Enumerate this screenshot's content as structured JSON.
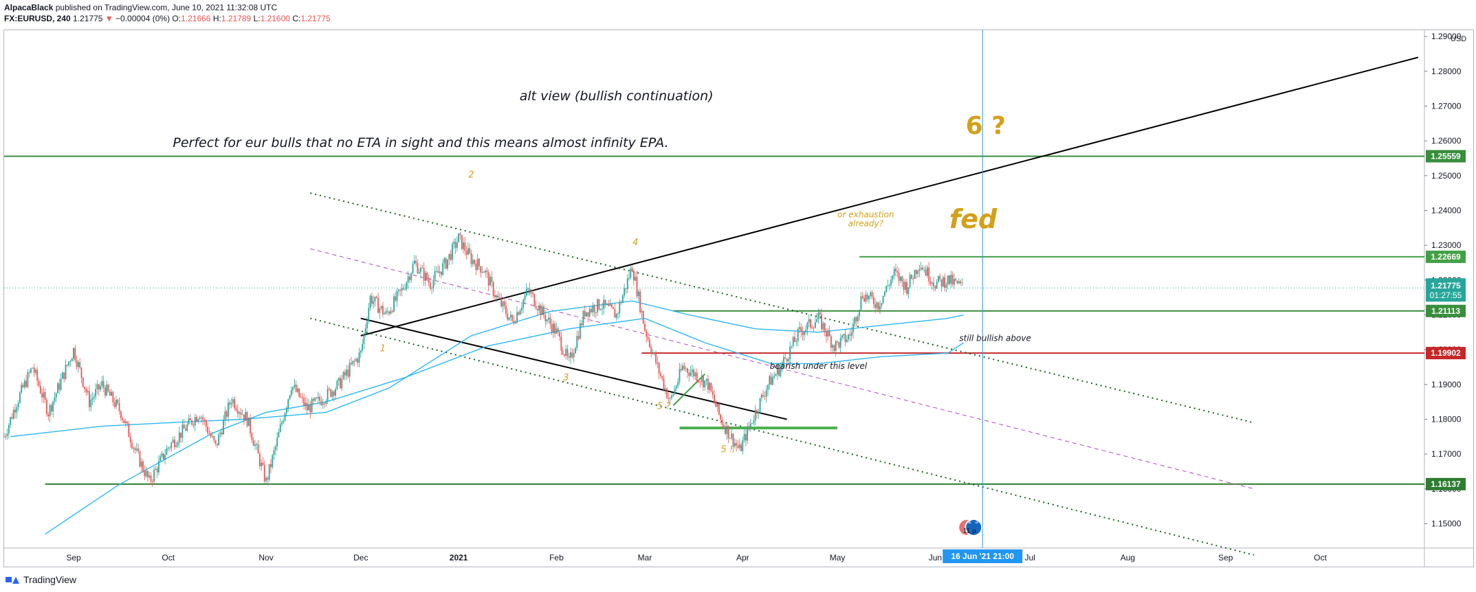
{
  "header": {
    "publisher": "AlpacaBlack",
    "published_text": "published on TradingView.com, June 10, 2021 11:32:08 UTC",
    "symbol": "FX:EURUSD, 240",
    "last": "1.21775",
    "arrow": "▼",
    "change": "−0.00004 (0%)",
    "o_label": "O:",
    "o_value": "1.21666",
    "h_label": "H:",
    "h_value": "1.21789",
    "l_label": "L:",
    "l_value": "1.21600",
    "c_label": "C:",
    "c_value": "1.21775"
  },
  "footer": {
    "brand": "TradingView"
  },
  "colors": {
    "up": "#26a69a",
    "down": "#ef5350",
    "green_line": "#388e3c",
    "red_line": "#c62828",
    "ma": "#29b6f6",
    "annotation": "#d4a017",
    "cursor": "#2196f3"
  },
  "chart_data": {
    "type": "candlestick",
    "symbol": "FX:EURUSD",
    "interval": "240",
    "currency_label": "USD",
    "ylim": [
      1.143,
      1.2918
    ],
    "y_ticks": [
      "1.15000",
      "1.16000",
      "1.17000",
      "1.18000",
      "1.19000",
      "1.20000",
      "1.21000",
      "1.22000",
      "1.23000",
      "1.24000",
      "1.25000",
      "1.26000",
      "1.27000",
      "1.28000",
      "1.29000"
    ],
    "x_ticks": [
      "Sep",
      "Oct",
      "Nov",
      "Dec",
      "2021",
      "Feb",
      "Mar",
      "Apr",
      "May",
      "Jun",
      "Jul",
      "Aug",
      "Sep",
      "Oct"
    ],
    "x_tick_dates": [
      "2020-09-01",
      "2020-10-01",
      "2020-11-01",
      "2020-12-01",
      "2021-01-01",
      "2021-02-01",
      "2021-03-01",
      "2021-04-01",
      "2021-05-01",
      "2021-06-01",
      "2021-07-01",
      "2021-08-01",
      "2021-09-01",
      "2021-10-01"
    ],
    "xlim": [
      "2020-08-10",
      "2021-11-03"
    ],
    "price_path": [
      [
        "2020-08-10",
        1.175
      ],
      [
        "2020-08-14",
        1.185
      ],
      [
        "2020-08-19",
        1.195
      ],
      [
        "2020-08-24",
        1.182
      ],
      [
        "2020-09-01",
        1.2
      ],
      [
        "2020-09-06",
        1.185
      ],
      [
        "2020-09-10",
        1.19
      ],
      [
        "2020-09-16",
        1.182
      ],
      [
        "2020-09-21",
        1.17
      ],
      [
        "2020-09-25",
        1.162
      ],
      [
        "2020-10-01",
        1.172
      ],
      [
        "2020-10-06",
        1.177
      ],
      [
        "2020-10-11",
        1.182
      ],
      [
        "2020-10-16",
        1.172
      ],
      [
        "2020-10-21",
        1.186
      ],
      [
        "2020-10-26",
        1.18
      ],
      [
        "2020-11-01",
        1.162
      ],
      [
        "2020-11-04",
        1.172
      ],
      [
        "2020-11-09",
        1.19
      ],
      [
        "2020-11-14",
        1.183
      ],
      [
        "2020-11-19",
        1.186
      ],
      [
        "2020-11-24",
        1.19
      ],
      [
        "2020-12-01",
        1.199
      ],
      [
        "2020-12-04",
        1.215
      ],
      [
        "2020-12-09",
        1.21
      ],
      [
        "2020-12-14",
        1.217
      ],
      [
        "2020-12-18",
        1.225
      ],
      [
        "2020-12-23",
        1.219
      ],
      [
        "2020-12-28",
        1.225
      ],
      [
        "2021-01-01",
        1.232
      ],
      [
        "2021-01-05",
        1.226
      ],
      [
        "2021-01-09",
        1.223
      ],
      [
        "2021-01-13",
        1.215
      ],
      [
        "2021-01-18",
        1.208
      ],
      [
        "2021-01-23",
        1.217
      ],
      [
        "2021-01-28",
        1.21
      ],
      [
        "2021-02-01",
        1.205
      ],
      [
        "2021-02-05",
        1.196
      ],
      [
        "2021-02-10",
        1.211
      ],
      [
        "2021-02-15",
        1.213
      ],
      [
        "2021-02-20",
        1.21
      ],
      [
        "2021-02-25",
        1.224
      ],
      [
        "2021-03-01",
        1.206
      ],
      [
        "2021-03-05",
        1.195
      ],
      [
        "2021-03-09",
        1.185
      ],
      [
        "2021-03-13",
        1.195
      ],
      [
        "2021-03-17",
        1.193
      ],
      [
        "2021-03-21",
        1.19
      ],
      [
        "2021-03-25",
        1.18
      ],
      [
        "2021-03-31",
        1.171
      ],
      [
        "2021-04-05",
        1.182
      ],
      [
        "2021-04-09",
        1.19
      ],
      [
        "2021-04-13",
        1.195
      ],
      [
        "2021-04-19",
        1.205
      ],
      [
        "2021-04-25",
        1.209
      ],
      [
        "2021-04-30",
        1.201
      ],
      [
        "2021-05-05",
        1.204
      ],
      [
        "2021-05-09",
        1.216
      ],
      [
        "2021-05-14",
        1.213
      ],
      [
        "2021-05-19",
        1.222
      ],
      [
        "2021-05-23",
        1.218
      ],
      [
        "2021-05-27",
        1.225
      ],
      [
        "2021-06-01",
        1.219
      ],
      [
        "2021-06-05",
        1.22
      ],
      [
        "2021-06-10",
        1.2178
      ]
    ],
    "moving_averages": [
      {
        "points": [
          [
            "2020-08-23",
            1.147
          ],
          [
            "2020-09-15",
            1.161
          ],
          [
            "2020-10-15",
            1.176
          ],
          [
            "2020-11-01",
            1.182
          ],
          [
            "2020-11-20",
            1.185
          ],
          [
            "2020-12-15",
            1.192
          ],
          [
            "2021-01-10",
            1.201
          ],
          [
            "2021-02-05",
            1.206
          ],
          [
            "2021-03-01",
            1.209
          ],
          [
            "2021-03-20",
            1.202
          ],
          [
            "2021-04-10",
            1.196
          ],
          [
            "2021-04-25",
            1.196
          ],
          [
            "2021-05-15",
            1.198
          ],
          [
            "2021-06-05",
            1.199
          ],
          [
            "2021-06-10",
            1.202
          ]
        ]
      },
      {
        "points": [
          [
            "2020-08-12",
            1.175
          ],
          [
            "2020-09-10",
            1.178
          ],
          [
            "2020-10-01",
            1.179
          ],
          [
            "2020-10-25",
            1.18
          ],
          [
            "2020-11-20",
            1.182
          ],
          [
            "2020-12-10",
            1.189
          ],
          [
            "2021-01-05",
            1.204
          ],
          [
            "2021-01-30",
            1.211
          ],
          [
            "2021-02-25",
            1.214
          ],
          [
            "2021-03-15",
            1.21
          ],
          [
            "2021-04-05",
            1.206
          ],
          [
            "2021-04-25",
            1.205
          ],
          [
            "2021-05-15",
            1.207
          ],
          [
            "2021-06-05",
            1.209
          ],
          [
            "2021-06-10",
            1.21
          ]
        ]
      }
    ],
    "horizontal_levels": [
      {
        "value": 1.25559,
        "label": "1.25559",
        "color": "#388e3c",
        "from": "2020-08-10"
      },
      {
        "value": 1.22669,
        "label": "1.22669",
        "color": "#43a047",
        "from": "2021-05-08"
      },
      {
        "value": 1.21113,
        "label": "1.21113",
        "color": "#388e3c",
        "from": "2021-03-10"
      },
      {
        "value": 1.19902,
        "label": "1.19902",
        "color": "#c62828",
        "from": "2021-02-28"
      },
      {
        "value": 1.16137,
        "label": "1.16137",
        "color": "#2e7d32",
        "from": "2020-08-23"
      }
    ],
    "current_price": {
      "value": 1.21775,
      "label": "1.21775",
      "countdown": "01:27:55"
    },
    "trendlines": [
      {
        "from": [
          "2020-12-01",
          1.204
        ],
        "to": [
          "2021-11-01",
          1.284
        ],
        "color": "#000000",
        "style": "solid",
        "width": 2
      },
      {
        "from": [
          "2020-12-01",
          1.209
        ],
        "to": [
          "2021-04-15",
          1.18
        ],
        "color": "#000000",
        "style": "solid",
        "width": 2
      },
      {
        "from": [
          "2020-11-15",
          1.245
        ],
        "to": [
          "2021-09-10",
          1.179
        ],
        "color": "#1b5e20",
        "style": "dotted",
        "width": 2
      },
      {
        "from": [
          "2020-11-15",
          1.229
        ],
        "to": [
          "2021-09-10",
          1.16
        ],
        "color": "#ab47bc",
        "style": "dashed",
        "width": 1
      },
      {
        "from": [
          "2020-11-15",
          1.209
        ],
        "to": [
          "2021-09-10",
          1.141
        ],
        "color": "#1b5e20",
        "style": "dotted",
        "width": 2
      },
      {
        "from": [
          "2021-03-10",
          1.184
        ],
        "to": [
          "2021-03-20",
          1.193
        ],
        "color": "#43a047",
        "style": "solid",
        "width": 2
      },
      {
        "from": [
          "2021-03-12",
          1.1775
        ],
        "to": [
          "2021-05-01",
          1.1775
        ],
        "color": "#4caf50",
        "style": "solid",
        "width": 4
      }
    ],
    "annotations": [
      {
        "text": "alt view (bullish continuation)",
        "x": "2021-02-20",
        "y": 1.2717,
        "size": 19,
        "color": "#131722",
        "italic": true
      },
      {
        "text": "Perfect for eur bulls that no ETA in sight and this means almost infinity EPA.",
        "x": "2020-12-20",
        "y": 1.2583,
        "size": 19,
        "color": "#131722",
        "italic": true
      },
      {
        "text": "6 ?",
        "x": "2021-06-17",
        "y": 1.262,
        "size": 36,
        "color": "#d4a017",
        "bold": true
      },
      {
        "text": "fed",
        "x": "2021-06-13",
        "y": 1.235,
        "size": 38,
        "color": "#d4a017",
        "bold": true,
        "italic": true
      },
      {
        "text": "or exhaustion",
        "x": "2021-05-10",
        "y": 1.238,
        "size": 12,
        "color": "#d4a017",
        "italic": true
      },
      {
        "text": "already?",
        "x": "2021-05-10",
        "y": 1.2355,
        "size": 12,
        "color": "#d4a017",
        "italic": true
      },
      {
        "text": "still bullish above",
        "x": "2021-06-20",
        "y": 1.2025,
        "size": 12,
        "color": "#131722",
        "italic": true
      },
      {
        "text": "bearish under this level",
        "x": "2021-04-25",
        "y": 1.1945,
        "size": 12,
        "color": "#131722",
        "italic": true
      },
      {
        "text": "1",
        "x": "2020-12-08",
        "y": 1.1995,
        "size": 13,
        "color": "#d4a017",
        "italic": true
      },
      {
        "text": "2",
        "x": "2021-01-05",
        "y": 1.2495,
        "size": 13,
        "color": "#d4a017",
        "italic": true
      },
      {
        "text": "3",
        "x": "2021-02-04",
        "y": 1.1912,
        "size": 13,
        "color": "#d4a017",
        "italic": true
      },
      {
        "text": "4",
        "x": "2021-02-26",
        "y": 1.23,
        "size": 13,
        "color": "#d4a017",
        "italic": true
      },
      {
        "text": "5 ?",
        "x": "2021-03-07",
        "y": 1.183,
        "size": 13,
        "color": "#d4a017",
        "italic": true
      },
      {
        "text": "5 !",
        "x": "2021-03-27",
        "y": 1.1705,
        "size": 13,
        "color": "#d4a017",
        "italic": true
      }
    ],
    "cursor": {
      "x": "2021-06-16",
      "label": "16 Jun '21   21:00"
    },
    "event_badge": {
      "x": "2021-06-11",
      "text": "11 p",
      "counts": [
        "2",
        "3"
      ]
    }
  }
}
